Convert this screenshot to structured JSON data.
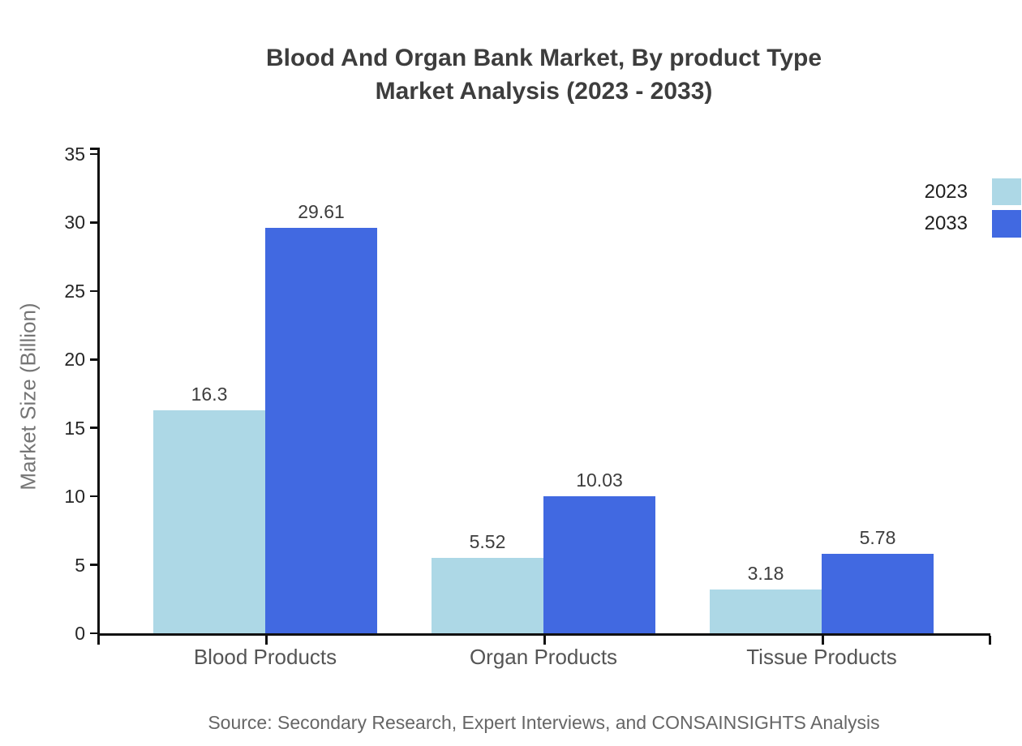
{
  "title": {
    "line1": "Blood And Organ Bank Market, By product Type",
    "line2": "Market Analysis (2023 - 2033)"
  },
  "source": "Source: Secondary Research, Expert Interviews, and CONSAINSIGHTS Analysis",
  "chart_data": {
    "type": "bar",
    "title": "Blood And Organ Bank Market, By product Type Market Analysis (2023 - 2033)",
    "categories": [
      "Blood Products",
      "Organ Products",
      "Tissue Products"
    ],
    "series": [
      {
        "name": "2023",
        "color": "#add8e6",
        "values": [
          16.3,
          5.52,
          3.18
        ]
      },
      {
        "name": "2033",
        "color": "#4169e1",
        "values": [
          29.61,
          10.03,
          5.78
        ]
      }
    ],
    "xlabel": "",
    "ylabel": "Market Size (Billion)",
    "ylim": [
      0,
      35
    ],
    "yticks": [
      0,
      5,
      10,
      15,
      20,
      25,
      30,
      35
    ],
    "grid": false,
    "legend_position": "top-right",
    "axis_color": "#111111"
  }
}
